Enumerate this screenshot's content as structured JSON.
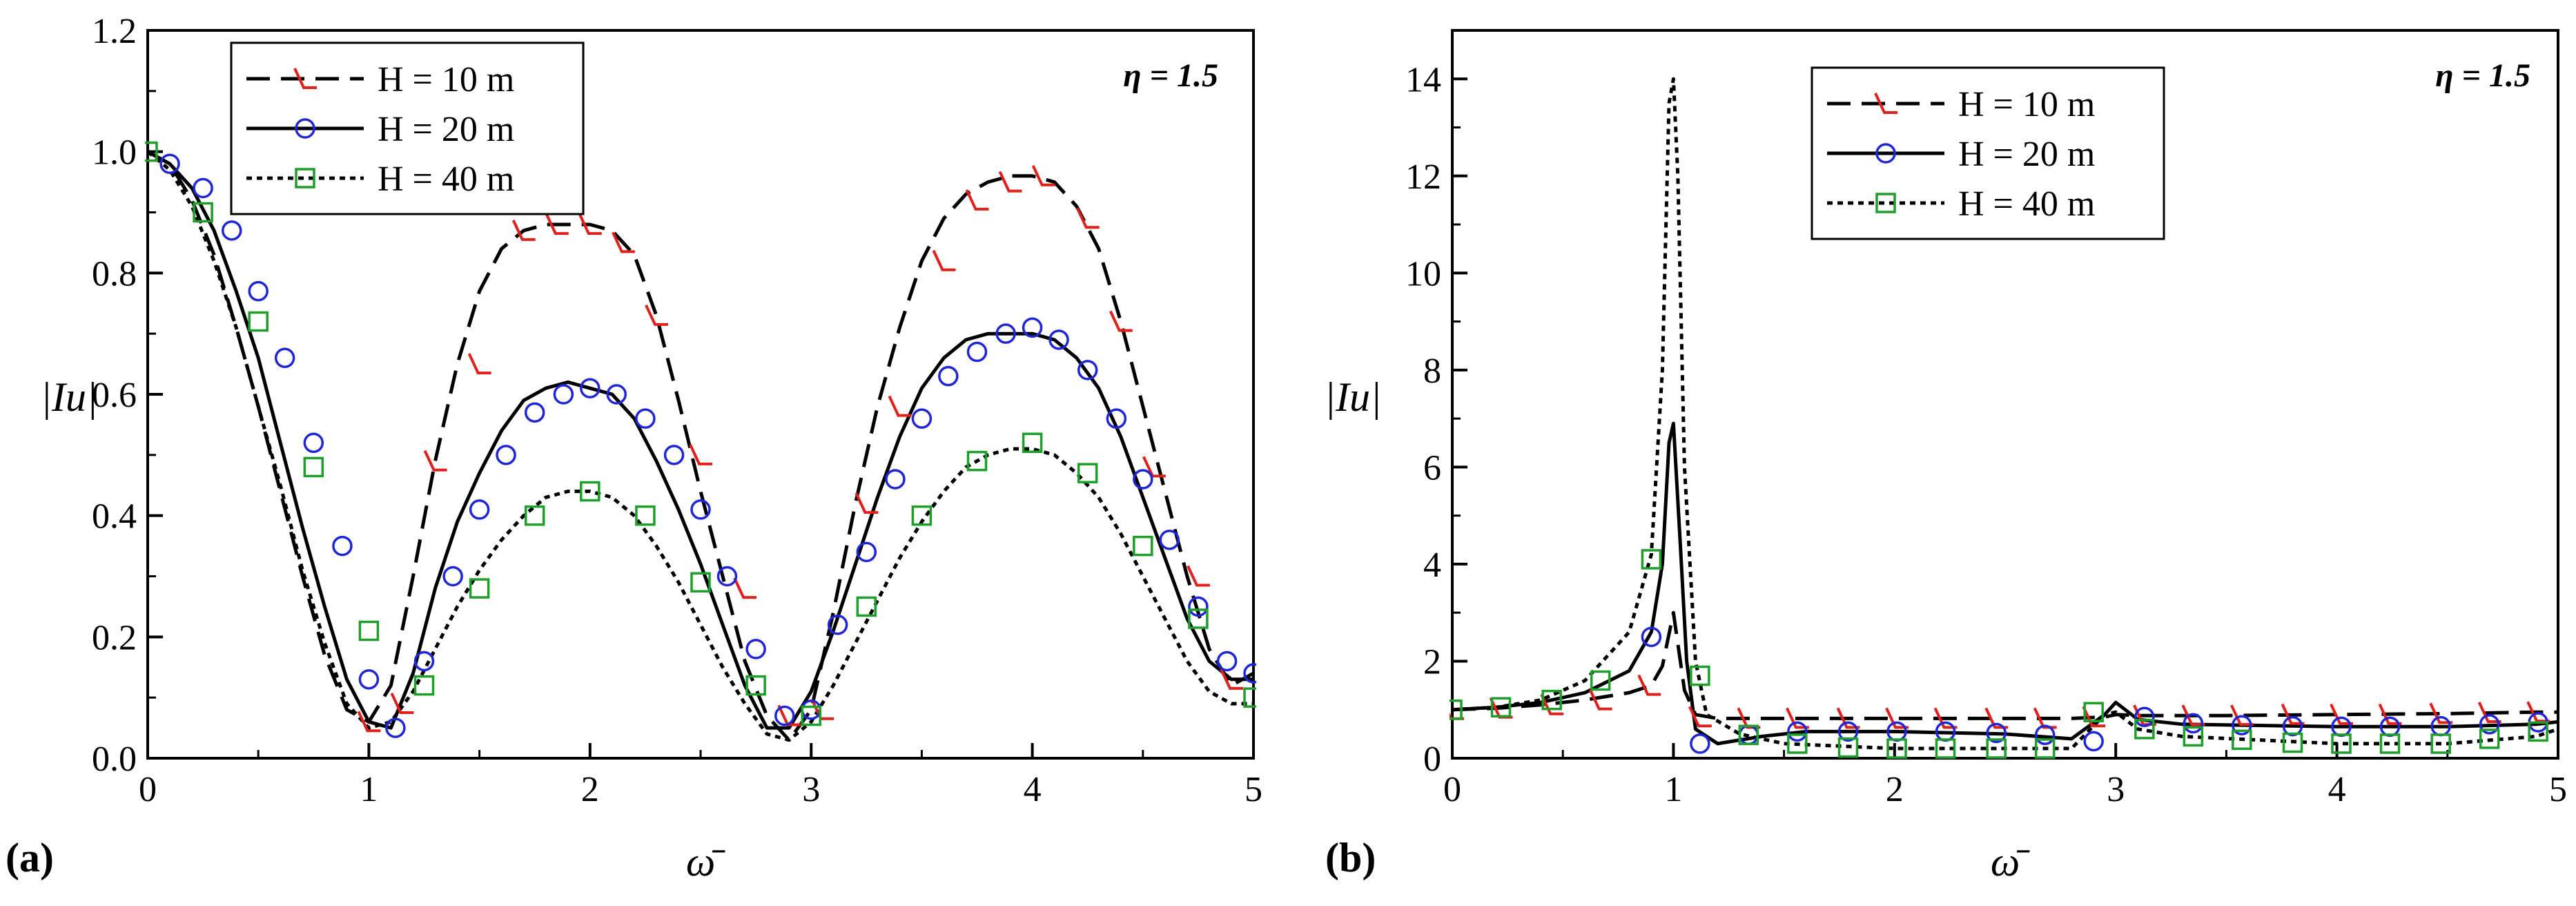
{
  "chart_data": [
    {
      "panel": "(a)",
      "type": "line",
      "annotation": "η = 1.5",
      "xlabel": "ω̄",
      "ylabel": "|Iu|",
      "xlim": [
        0,
        5
      ],
      "ylim": [
        0,
        1.2
      ],
      "xticks": [
        "0",
        "1",
        "2",
        "3",
        "4",
        "5"
      ],
      "yticks": [
        "0.0",
        "0.2",
        "0.4",
        "0.6",
        "0.8",
        "1.0",
        "1.2"
      ],
      "legend_position": "top-left",
      "series": [
        {
          "name": "H = 10 m",
          "style": "dashed",
          "marker": "half-triangle",
          "marker_color": "#e0201b",
          "x": [
            0,
            0.1,
            0.2,
            0.3,
            0.4,
            0.5,
            0.6,
            0.7,
            0.8,
            0.9,
            1.0,
            1.1,
            1.2,
            1.3,
            1.4,
            1.5,
            1.6,
            1.7,
            1.8,
            1.9,
            2.0,
            2.1,
            2.2,
            2.3,
            2.4,
            2.5,
            2.6,
            2.7,
            2.8,
            2.9,
            3.0,
            3.1,
            3.2,
            3.3,
            3.4,
            3.5,
            3.6,
            3.7,
            3.8,
            3.9,
            4.0,
            4.1,
            4.2,
            4.3,
            4.4,
            4.5,
            4.6,
            4.7,
            4.8,
            4.9,
            5.0
          ],
          "y": [
            1.0,
            0.98,
            0.92,
            0.83,
            0.71,
            0.58,
            0.44,
            0.3,
            0.17,
            0.08,
            0.06,
            0.12,
            0.3,
            0.49,
            0.65,
            0.77,
            0.84,
            0.87,
            0.88,
            0.88,
            0.88,
            0.87,
            0.83,
            0.73,
            0.59,
            0.44,
            0.3,
            0.16,
            0.07,
            0.03,
            0.08,
            0.24,
            0.42,
            0.58,
            0.71,
            0.82,
            0.89,
            0.93,
            0.95,
            0.96,
            0.96,
            0.95,
            0.91,
            0.84,
            0.72,
            0.58,
            0.44,
            0.3,
            0.18,
            0.12,
            0.14
          ],
          "marker_x": [
            1.0,
            1.15,
            1.3,
            1.5,
            1.7,
            1.85,
            2.0,
            2.15,
            2.3,
            2.5,
            2.7,
            2.9,
            3.05,
            3.25,
            3.4,
            3.6,
            3.75,
            3.9,
            4.05,
            4.25,
            4.4,
            4.55,
            4.75,
            4.9
          ],
          "marker_y": [
            0.06,
            0.09,
            0.49,
            0.65,
            0.87,
            0.88,
            0.88,
            0.85,
            0.73,
            0.5,
            0.28,
            0.07,
            0.08,
            0.42,
            0.58,
            0.82,
            0.92,
            0.95,
            0.96,
            0.89,
            0.72,
            0.48,
            0.3,
            0.13
          ]
        },
        {
          "name": "H = 20 m",
          "style": "solid",
          "marker": "circle",
          "marker_color": "#1f26d6",
          "x": [
            0,
            0.1,
            0.2,
            0.3,
            0.4,
            0.5,
            0.6,
            0.7,
            0.8,
            0.9,
            1.0,
            1.1,
            1.2,
            1.3,
            1.4,
            1.5,
            1.6,
            1.7,
            1.8,
            1.9,
            2.0,
            2.1,
            2.2,
            2.3,
            2.4,
            2.5,
            2.6,
            2.7,
            2.8,
            2.9,
            3.0,
            3.1,
            3.2,
            3.3,
            3.4,
            3.5,
            3.6,
            3.7,
            3.8,
            3.9,
            4.0,
            4.1,
            4.2,
            4.3,
            4.4,
            4.5,
            4.6,
            4.7,
            4.8,
            4.9,
            5.0
          ],
          "y": [
            1.0,
            0.98,
            0.94,
            0.87,
            0.77,
            0.66,
            0.52,
            0.38,
            0.25,
            0.13,
            0.06,
            0.05,
            0.14,
            0.28,
            0.39,
            0.47,
            0.54,
            0.59,
            0.61,
            0.62,
            0.61,
            0.6,
            0.56,
            0.49,
            0.41,
            0.32,
            0.22,
            0.12,
            0.05,
            0.05,
            0.11,
            0.21,
            0.32,
            0.43,
            0.53,
            0.61,
            0.66,
            0.69,
            0.7,
            0.7,
            0.7,
            0.69,
            0.66,
            0.61,
            0.53,
            0.43,
            0.33,
            0.23,
            0.16,
            0.13,
            0.13
          ],
          "marker_x": [
            0.1,
            0.25,
            0.38,
            0.5,
            0.62,
            0.75,
            0.88,
            1.0,
            1.12,
            1.25,
            1.38,
            1.5,
            1.62,
            1.75,
            1.88,
            2.0,
            2.12,
            2.25,
            2.38,
            2.5,
            2.62,
            2.75,
            2.88,
            3.0,
            3.12,
            3.25,
            3.38,
            3.5,
            3.62,
            3.75,
            3.88,
            4.0,
            4.12,
            4.25,
            4.38,
            4.5,
            4.62,
            4.75,
            4.88,
            5.0
          ],
          "marker_y": [
            0.98,
            0.94,
            0.87,
            0.77,
            0.66,
            0.52,
            0.35,
            0.13,
            0.05,
            0.16,
            0.3,
            0.41,
            0.5,
            0.57,
            0.6,
            0.61,
            0.6,
            0.56,
            0.5,
            0.41,
            0.3,
            0.18,
            0.07,
            0.08,
            0.22,
            0.34,
            0.46,
            0.56,
            0.63,
            0.67,
            0.7,
            0.71,
            0.69,
            0.64,
            0.56,
            0.46,
            0.36,
            0.25,
            0.16,
            0.14
          ]
        },
        {
          "name": "H = 40 m",
          "style": "dotted",
          "marker": "square",
          "marker_color": "#1e9e2b",
          "x": [
            0,
            0.1,
            0.2,
            0.3,
            0.4,
            0.5,
            0.6,
            0.7,
            0.8,
            0.9,
            1.0,
            1.1,
            1.2,
            1.3,
            1.4,
            1.5,
            1.6,
            1.7,
            1.8,
            1.9,
            2.0,
            2.1,
            2.2,
            2.3,
            2.4,
            2.5,
            2.6,
            2.7,
            2.8,
            2.9,
            3.0,
            3.1,
            3.2,
            3.3,
            3.4,
            3.5,
            3.6,
            3.7,
            3.8,
            3.9,
            4.0,
            4.1,
            4.2,
            4.3,
            4.4,
            4.5,
            4.6,
            4.7,
            4.8,
            4.9,
            5.0
          ],
          "y": [
            1.0,
            0.97,
            0.91,
            0.82,
            0.71,
            0.58,
            0.45,
            0.31,
            0.19,
            0.09,
            0.05,
            0.06,
            0.11,
            0.18,
            0.25,
            0.31,
            0.36,
            0.4,
            0.43,
            0.44,
            0.44,
            0.43,
            0.4,
            0.35,
            0.29,
            0.22,
            0.15,
            0.09,
            0.04,
            0.03,
            0.06,
            0.12,
            0.19,
            0.26,
            0.33,
            0.39,
            0.44,
            0.48,
            0.5,
            0.51,
            0.51,
            0.5,
            0.47,
            0.43,
            0.37,
            0.3,
            0.23,
            0.16,
            0.11,
            0.09,
            0.09
          ],
          "marker_x": [
            0,
            0.25,
            0.5,
            0.75,
            1.0,
            1.25,
            1.5,
            1.75,
            2.0,
            2.25,
            2.5,
            2.75,
            3.0,
            3.25,
            3.5,
            3.75,
            4.0,
            4.25,
            4.5,
            4.75,
            5.0
          ],
          "marker_y": [
            1.0,
            0.9,
            0.72,
            0.48,
            0.21,
            0.12,
            0.28,
            0.4,
            0.44,
            0.4,
            0.29,
            0.12,
            0.07,
            0.25,
            0.4,
            0.49,
            0.52,
            0.47,
            0.35,
            0.23,
            0.1
          ]
        }
      ]
    },
    {
      "panel": "(b)",
      "type": "line",
      "annotation": "η = 1.5",
      "xlabel": "ω̄",
      "ylabel": "|Iu|",
      "xlim": [
        0,
        5
      ],
      "ylim": [
        0,
        15
      ],
      "xticks": [
        "0",
        "1",
        "2",
        "3",
        "4",
        "5"
      ],
      "yticks": [
        "0",
        "2",
        "4",
        "6",
        "8",
        "10",
        "12",
        "14"
      ],
      "legend_position": "top-center",
      "series": [
        {
          "name": "H = 10 m",
          "style": "dashed",
          "marker": "half-triangle",
          "marker_color": "#e0201b",
          "x": [
            0,
            0.2,
            0.4,
            0.6,
            0.8,
            0.9,
            0.95,
            1.0,
            1.05,
            1.1,
            1.2,
            1.4,
            2.0,
            2.5,
            2.8,
            2.95,
            3.0,
            3.1,
            3.5,
            4.0,
            4.5,
            4.9,
            5.0
          ],
          "y": [
            1.0,
            1.03,
            1.1,
            1.2,
            1.35,
            1.5,
            1.9,
            3.0,
            1.4,
            0.9,
            0.82,
            0.82,
            0.82,
            0.82,
            0.82,
            0.85,
            0.9,
            0.88,
            0.88,
            0.9,
            0.92,
            0.95,
            0.95
          ],
          "marker_x": [
            0,
            0.22,
            0.45,
            0.67,
            0.89,
            1.12,
            1.34,
            1.56,
            1.79,
            2.01,
            2.23,
            2.46,
            2.68,
            2.9,
            3.13,
            3.35,
            3.57,
            3.8,
            4.02,
            4.24,
            4.47,
            4.69,
            4.91
          ],
          "marker_y": [
            1.0,
            1.03,
            1.1,
            1.2,
            1.5,
            0.85,
            0.82,
            0.82,
            0.82,
            0.82,
            0.82,
            0.82,
            0.82,
            0.85,
            0.88,
            0.88,
            0.88,
            0.9,
            0.9,
            0.9,
            0.92,
            0.94,
            0.95
          ]
        },
        {
          "name": "H = 20 m",
          "style": "solid",
          "marker": "circle",
          "marker_color": "#1f26d6",
          "x": [
            0,
            0.2,
            0.4,
            0.6,
            0.8,
            0.9,
            0.95,
            0.98,
            1.0,
            1.03,
            1.06,
            1.1,
            1.2,
            1.4,
            1.6,
            2.0,
            2.5,
            2.8,
            2.95,
            3.0,
            3.1,
            3.3,
            4.0,
            4.5,
            4.9,
            5.0
          ],
          "y": [
            1.0,
            1.05,
            1.15,
            1.35,
            1.8,
            2.6,
            4.0,
            6.5,
            6.9,
            4.5,
            2.0,
            0.6,
            0.3,
            0.45,
            0.55,
            0.55,
            0.5,
            0.4,
            0.9,
            1.15,
            0.8,
            0.7,
            0.65,
            0.65,
            0.7,
            0.75
          ],
          "marker_x": [
            0.9,
            1.12,
            1.34,
            1.56,
            1.79,
            2.01,
            2.23,
            2.46,
            2.68,
            2.9,
            3.13,
            3.35,
            3.57,
            3.8,
            4.02,
            4.24,
            4.47,
            4.69,
            4.91
          ],
          "marker_y": [
            2.5,
            0.3,
            0.48,
            0.55,
            0.55,
            0.55,
            0.55,
            0.52,
            0.48,
            0.35,
            0.85,
            0.72,
            0.68,
            0.66,
            0.65,
            0.65,
            0.66,
            0.7,
            0.74
          ]
        },
        {
          "name": "H = 40 m",
          "style": "dotted",
          "marker": "square",
          "marker_color": "#1e9e2b",
          "x": [
            0,
            0.2,
            0.4,
            0.6,
            0.8,
            0.9,
            0.95,
            0.98,
            1.0,
            1.02,
            1.05,
            1.1,
            1.15,
            1.3,
            1.5,
            2.0,
            2.5,
            2.8,
            2.95,
            3.0,
            3.1,
            3.3,
            4.0,
            4.5,
            4.9,
            5.0
          ],
          "y": [
            1.0,
            1.05,
            1.2,
            1.6,
            2.6,
            4.2,
            8.0,
            13.5,
            14.0,
            12.0,
            6.0,
            2.0,
            0.9,
            0.5,
            0.3,
            0.2,
            0.2,
            0.2,
            0.9,
            0.95,
            0.6,
            0.45,
            0.3,
            0.3,
            0.45,
            0.6
          ],
          "marker_x": [
            0,
            0.22,
            0.45,
            0.67,
            0.9,
            1.12,
            1.34,
            1.56,
            1.79,
            2.01,
            2.23,
            2.46,
            2.68,
            2.9,
            3.13,
            3.35,
            3.57,
            3.8,
            4.02,
            4.24,
            4.47,
            4.69,
            4.91
          ],
          "marker_y": [
            1.0,
            1.05,
            1.2,
            1.6,
            4.1,
            1.7,
            0.48,
            0.3,
            0.22,
            0.2,
            0.2,
            0.2,
            0.2,
            0.95,
            0.6,
            0.45,
            0.38,
            0.32,
            0.3,
            0.3,
            0.3,
            0.4,
            0.55
          ]
        }
      ]
    }
  ]
}
